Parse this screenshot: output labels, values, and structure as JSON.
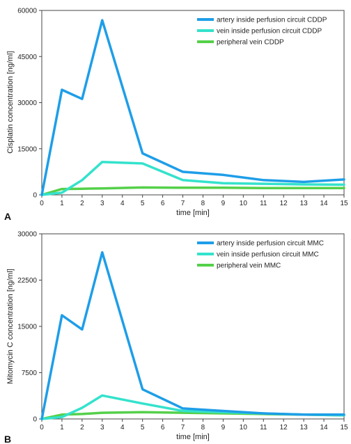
{
  "chart_data": [
    {
      "type": "line",
      "panel_label": "A",
      "title": "",
      "xlabel": "time [min]",
      "ylabel": "Cisplatin concentration [ng/ml]",
      "xlim": [
        0,
        15
      ],
      "ylim": [
        0,
        60000
      ],
      "x_ticks": [
        0,
        1,
        2,
        3,
        4,
        5,
        6,
        7,
        8,
        9,
        10,
        11,
        12,
        13,
        14,
        15
      ],
      "y_ticks": [
        0,
        15000,
        30000,
        45000,
        60000
      ],
      "legend_position": "top-right",
      "grid": false,
      "x": [
        0,
        1,
        2,
        3,
        5,
        7,
        9,
        11,
        13,
        15
      ],
      "series": [
        {
          "name": "artery inside perfusion circuit CDDP",
          "color": "#1e9ee8",
          "values": [
            0,
            34200,
            31200,
            56800,
            13500,
            7500,
            6500,
            4800,
            4200,
            5000
          ]
        },
        {
          "name": "vein inside perfusion circuit CDDP",
          "color": "#34e2cc",
          "values": [
            0,
            700,
            4800,
            10700,
            10200,
            4800,
            3800,
            3600,
            3400,
            3300
          ]
        },
        {
          "name": "peripheral vein CDDP",
          "color": "#55d04a",
          "values": [
            0,
            1900,
            2000,
            2100,
            2400,
            2300,
            2300,
            2200,
            2200,
            2200
          ]
        }
      ]
    },
    {
      "type": "line",
      "panel_label": "B",
      "title": "",
      "xlabel": "time [min]",
      "ylabel": "Mitomycin C concentration [ng/ml]",
      "xlim": [
        0,
        15
      ],
      "ylim": [
        0,
        30000
      ],
      "x_ticks": [
        0,
        1,
        2,
        3,
        4,
        5,
        6,
        7,
        8,
        9,
        10,
        11,
        12,
        13,
        14,
        15
      ],
      "y_ticks": [
        0,
        7500,
        15000,
        22500,
        30000
      ],
      "legend_position": "top-right",
      "grid": false,
      "x": [
        0,
        1,
        2,
        3,
        5,
        7,
        9,
        11,
        13,
        15
      ],
      "series": [
        {
          "name": "artery inside perfusion circuit MMC",
          "color": "#1e9ee8",
          "values": [
            0,
            16800,
            14500,
            27000,
            4800,
            1700,
            1300,
            900,
            700,
            700
          ]
        },
        {
          "name": "vein inside perfusion circuit MMC",
          "color": "#34e2cc",
          "values": [
            0,
            300,
            1800,
            3800,
            2500,
            1300,
            1100,
            900,
            700,
            600
          ]
        },
        {
          "name": "peripheral vein MMC",
          "color": "#55d04a",
          "values": [
            0,
            700,
            800,
            1000,
            1100,
            1000,
            900,
            800,
            700,
            600
          ]
        }
      ]
    }
  ]
}
